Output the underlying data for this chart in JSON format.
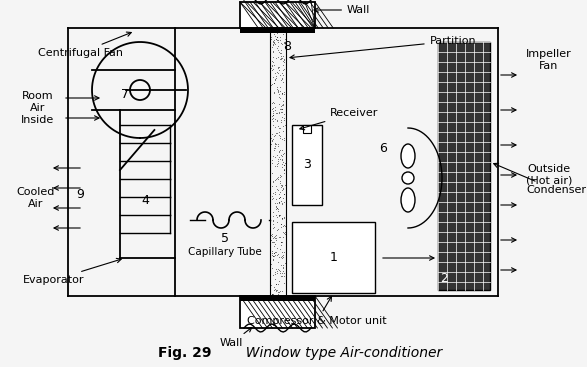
{
  "title": "Fig. 29",
  "title_italic": "  Window type Air-conditioner",
  "bg_color": "#f5f5f5",
  "box_color": "#000000",
  "labels": {
    "centrifugal_fan": "Centrifugal Fan",
    "room_air": "Room\nAir\nInside",
    "cooled_air": "Cooled\nAir",
    "evaporator": "Evaporator",
    "capillary_tube": "Capillary Tube",
    "wall_top": "Wall",
    "wall_bottom": "Wall",
    "partition": "Partition",
    "impeller_fan": "Impeller\nFan",
    "outside": "Outside\n(Hot air)",
    "condenser": "Condenser",
    "compressor": "Compressor & Motor unit",
    "receiver": "Receiver",
    "num1": "1",
    "num2": "2",
    "num3": "3",
    "num4": "4",
    "num5": "5",
    "num6": "6",
    "num7": "7",
    "num8": "8",
    "num9": "9"
  }
}
